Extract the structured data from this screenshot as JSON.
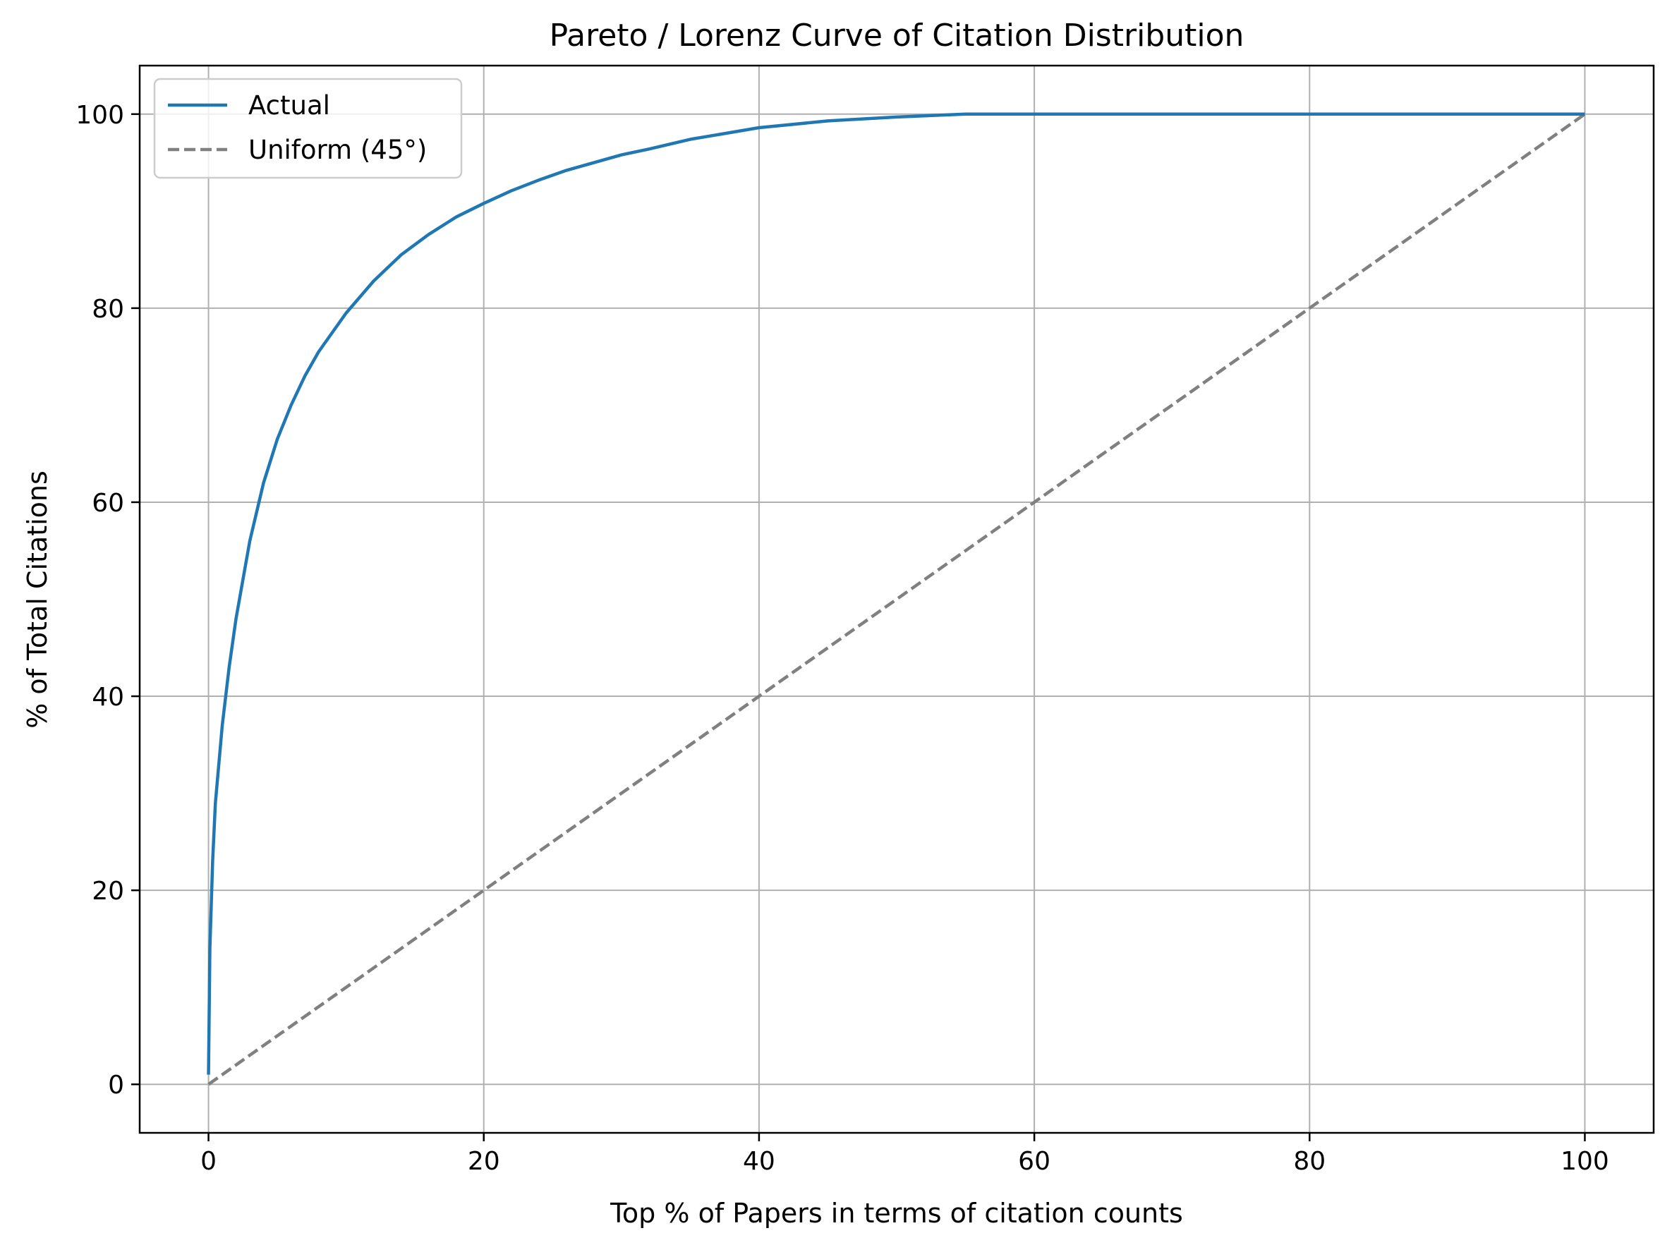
{
  "chart_data": {
    "type": "line",
    "title": "Pareto / Lorenz Curve of Citation Distribution",
    "xlabel": "Top % of Papers in terms of citation counts",
    "ylabel": "% of Total Citations",
    "xlim": [
      -5,
      105
    ],
    "ylim": [
      -5,
      105
    ],
    "xticks": [
      0,
      20,
      40,
      60,
      80,
      100
    ],
    "yticks": [
      0,
      20,
      40,
      60,
      80,
      100
    ],
    "xtick_labels": [
      "0",
      "20",
      "40",
      "60",
      "80",
      "100"
    ],
    "ytick_labels": [
      "0",
      "20",
      "40",
      "60",
      "80",
      "100"
    ],
    "grid": true,
    "legend_position": "top-left",
    "series": [
      {
        "name": "Actual",
        "color": "#1f77b4",
        "style": "solid",
        "x": [
          0,
          0.1,
          0.3,
          0.5,
          1,
          1.5,
          2,
          3,
          4,
          5,
          6,
          7,
          8,
          10,
          12,
          14,
          16,
          18,
          20,
          22,
          24,
          26,
          28,
          30,
          32,
          35,
          40,
          45,
          50,
          55,
          60,
          70,
          80,
          90,
          100
        ],
        "y": [
          1,
          14,
          23,
          29,
          37,
          43,
          48,
          56,
          62,
          66.5,
          70,
          73,
          75.5,
          79.5,
          82.8,
          85.5,
          87.6,
          89.4,
          90.8,
          92.1,
          93.2,
          94.2,
          95,
          95.8,
          96.4,
          97.4,
          98.6,
          99.3,
          99.7,
          100,
          100,
          100,
          100,
          100,
          100
        ]
      },
      {
        "name": "Uniform (45°)",
        "color": "#808080",
        "style": "dashed",
        "x": [
          0,
          100
        ],
        "y": [
          0,
          100
        ]
      }
    ]
  }
}
